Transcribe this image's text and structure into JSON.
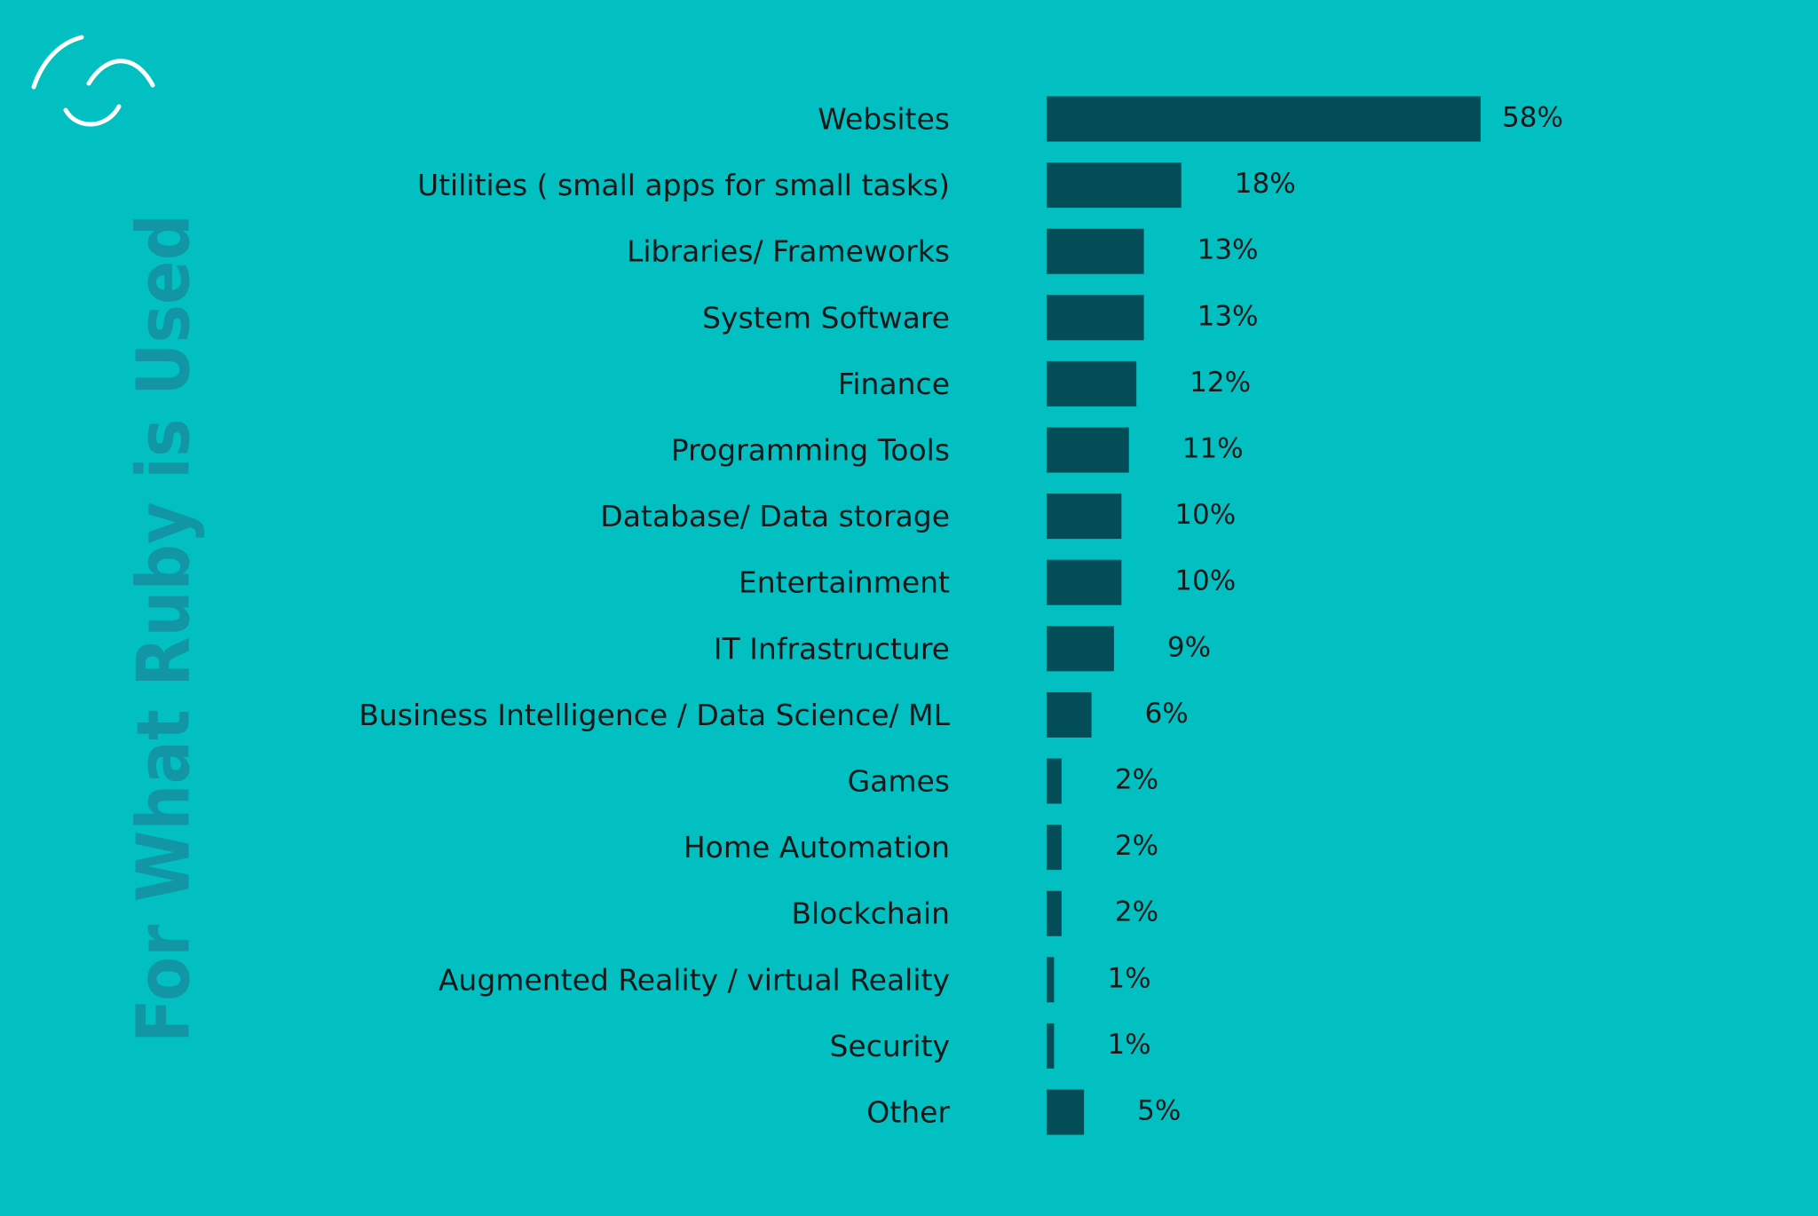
{
  "chart_data": {
    "type": "bar",
    "title": "For What Ruby is Used",
    "categories": [
      "Websites",
      "Utilities ( small apps for small tasks)",
      "Libraries/ Frameworks",
      "System Software",
      "Finance",
      "Programming Tools",
      "Database/ Data storage",
      "Entertainment",
      "IT Infrastructure",
      "Business Intelligence / Data Science/ ML",
      "Games",
      "Home Automation",
      "Blockchain",
      "Augmented Reality / virtual Reality",
      "Security",
      "Other"
    ],
    "values": [
      58,
      18,
      13,
      13,
      12,
      11,
      10,
      10,
      9,
      6,
      2,
      2,
      2,
      1,
      1,
      5
    ],
    "value_labels": [
      "58%",
      "18%",
      "13%",
      "13%",
      "12%",
      "11%",
      "10%",
      "10%",
      "9%",
      "6%",
      "2%",
      "2%",
      "2%",
      "1%",
      "1%",
      "5%"
    ],
    "color": "#034d58"
  }
}
